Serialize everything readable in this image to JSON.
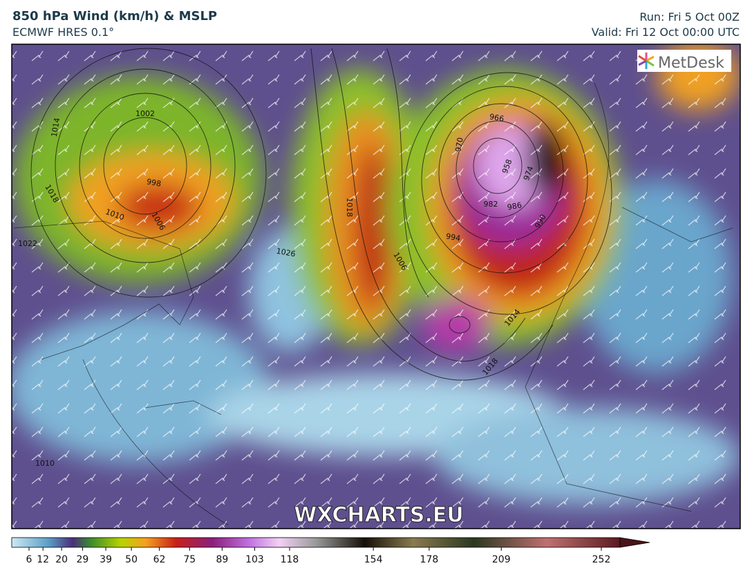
{
  "header": {
    "title": "850 hPa Wind (km/h) & MSLP",
    "model": "ECMWF HRES 0.1°",
    "run": "Run: Fri 5 Oct 00Z",
    "valid": "Valid: Fri 12 Oct 00:00 UTC"
  },
  "logo": "MetDesk",
  "watermark": "WXCHARTS.EU",
  "colorbar": {
    "ticks": [
      6,
      12,
      20,
      29,
      39,
      50,
      62,
      75,
      89,
      103,
      118,
      154,
      178,
      209,
      252
    ]
  },
  "isobar_labels": [
    "1002",
    "998",
    "1014",
    "1018",
    "1010",
    "1006",
    "1022",
    "1026",
    "1018",
    "1006",
    "994",
    "982",
    "986",
    "970",
    "966",
    "958",
    "974",
    "990",
    "1014",
    "1018",
    "1010"
  ]
}
